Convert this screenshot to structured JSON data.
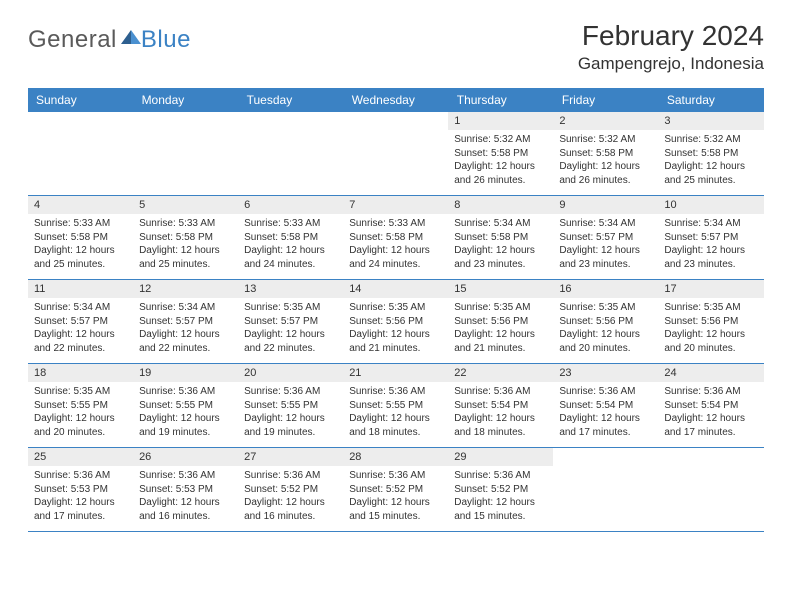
{
  "logo": {
    "text1": "General",
    "text2": "Blue"
  },
  "title": "February 2024",
  "location": "Gampengrejo, Indonesia",
  "colors": {
    "header_bg": "#3b82c4",
    "header_text": "#ffffff",
    "daynum_bg": "#ededed",
    "text": "#333333",
    "border": "#3b82c4",
    "logo_gray": "#5a5a5a",
    "logo_blue": "#3b82c4",
    "page_bg": "#ffffff"
  },
  "typography": {
    "title_fontsize": 28,
    "location_fontsize": 17,
    "dayheader_fontsize": 12,
    "daynum_fontsize": 11,
    "body_fontsize": 10
  },
  "day_headers": [
    "Sunday",
    "Monday",
    "Tuesday",
    "Wednesday",
    "Thursday",
    "Friday",
    "Saturday"
  ],
  "weeks": [
    [
      null,
      null,
      null,
      null,
      {
        "num": "1",
        "sunrise": "5:32 AM",
        "sunset": "5:58 PM",
        "daylight": "12 hours and 26 minutes."
      },
      {
        "num": "2",
        "sunrise": "5:32 AM",
        "sunset": "5:58 PM",
        "daylight": "12 hours and 26 minutes."
      },
      {
        "num": "3",
        "sunrise": "5:32 AM",
        "sunset": "5:58 PM",
        "daylight": "12 hours and 25 minutes."
      }
    ],
    [
      {
        "num": "4",
        "sunrise": "5:33 AM",
        "sunset": "5:58 PM",
        "daylight": "12 hours and 25 minutes."
      },
      {
        "num": "5",
        "sunrise": "5:33 AM",
        "sunset": "5:58 PM",
        "daylight": "12 hours and 25 minutes."
      },
      {
        "num": "6",
        "sunrise": "5:33 AM",
        "sunset": "5:58 PM",
        "daylight": "12 hours and 24 minutes."
      },
      {
        "num": "7",
        "sunrise": "5:33 AM",
        "sunset": "5:58 PM",
        "daylight": "12 hours and 24 minutes."
      },
      {
        "num": "8",
        "sunrise": "5:34 AM",
        "sunset": "5:58 PM",
        "daylight": "12 hours and 23 minutes."
      },
      {
        "num": "9",
        "sunrise": "5:34 AM",
        "sunset": "5:57 PM",
        "daylight": "12 hours and 23 minutes."
      },
      {
        "num": "10",
        "sunrise": "5:34 AM",
        "sunset": "5:57 PM",
        "daylight": "12 hours and 23 minutes."
      }
    ],
    [
      {
        "num": "11",
        "sunrise": "5:34 AM",
        "sunset": "5:57 PM",
        "daylight": "12 hours and 22 minutes."
      },
      {
        "num": "12",
        "sunrise": "5:34 AM",
        "sunset": "5:57 PM",
        "daylight": "12 hours and 22 minutes."
      },
      {
        "num": "13",
        "sunrise": "5:35 AM",
        "sunset": "5:57 PM",
        "daylight": "12 hours and 22 minutes."
      },
      {
        "num": "14",
        "sunrise": "5:35 AM",
        "sunset": "5:56 PM",
        "daylight": "12 hours and 21 minutes."
      },
      {
        "num": "15",
        "sunrise": "5:35 AM",
        "sunset": "5:56 PM",
        "daylight": "12 hours and 21 minutes."
      },
      {
        "num": "16",
        "sunrise": "5:35 AM",
        "sunset": "5:56 PM",
        "daylight": "12 hours and 20 minutes."
      },
      {
        "num": "17",
        "sunrise": "5:35 AM",
        "sunset": "5:56 PM",
        "daylight": "12 hours and 20 minutes."
      }
    ],
    [
      {
        "num": "18",
        "sunrise": "5:35 AM",
        "sunset": "5:55 PM",
        "daylight": "12 hours and 20 minutes."
      },
      {
        "num": "19",
        "sunrise": "5:36 AM",
        "sunset": "5:55 PM",
        "daylight": "12 hours and 19 minutes."
      },
      {
        "num": "20",
        "sunrise": "5:36 AM",
        "sunset": "5:55 PM",
        "daylight": "12 hours and 19 minutes."
      },
      {
        "num": "21",
        "sunrise": "5:36 AM",
        "sunset": "5:55 PM",
        "daylight": "12 hours and 18 minutes."
      },
      {
        "num": "22",
        "sunrise": "5:36 AM",
        "sunset": "5:54 PM",
        "daylight": "12 hours and 18 minutes."
      },
      {
        "num": "23",
        "sunrise": "5:36 AM",
        "sunset": "5:54 PM",
        "daylight": "12 hours and 17 minutes."
      },
      {
        "num": "24",
        "sunrise": "5:36 AM",
        "sunset": "5:54 PM",
        "daylight": "12 hours and 17 minutes."
      }
    ],
    [
      {
        "num": "25",
        "sunrise": "5:36 AM",
        "sunset": "5:53 PM",
        "daylight": "12 hours and 17 minutes."
      },
      {
        "num": "26",
        "sunrise": "5:36 AM",
        "sunset": "5:53 PM",
        "daylight": "12 hours and 16 minutes."
      },
      {
        "num": "27",
        "sunrise": "5:36 AM",
        "sunset": "5:52 PM",
        "daylight": "12 hours and 16 minutes."
      },
      {
        "num": "28",
        "sunrise": "5:36 AM",
        "sunset": "5:52 PM",
        "daylight": "12 hours and 15 minutes."
      },
      {
        "num": "29",
        "sunrise": "5:36 AM",
        "sunset": "5:52 PM",
        "daylight": "12 hours and 15 minutes."
      },
      null,
      null
    ]
  ],
  "labels": {
    "sunrise_prefix": "Sunrise: ",
    "sunset_prefix": "Sunset: ",
    "daylight_prefix": "Daylight: "
  }
}
